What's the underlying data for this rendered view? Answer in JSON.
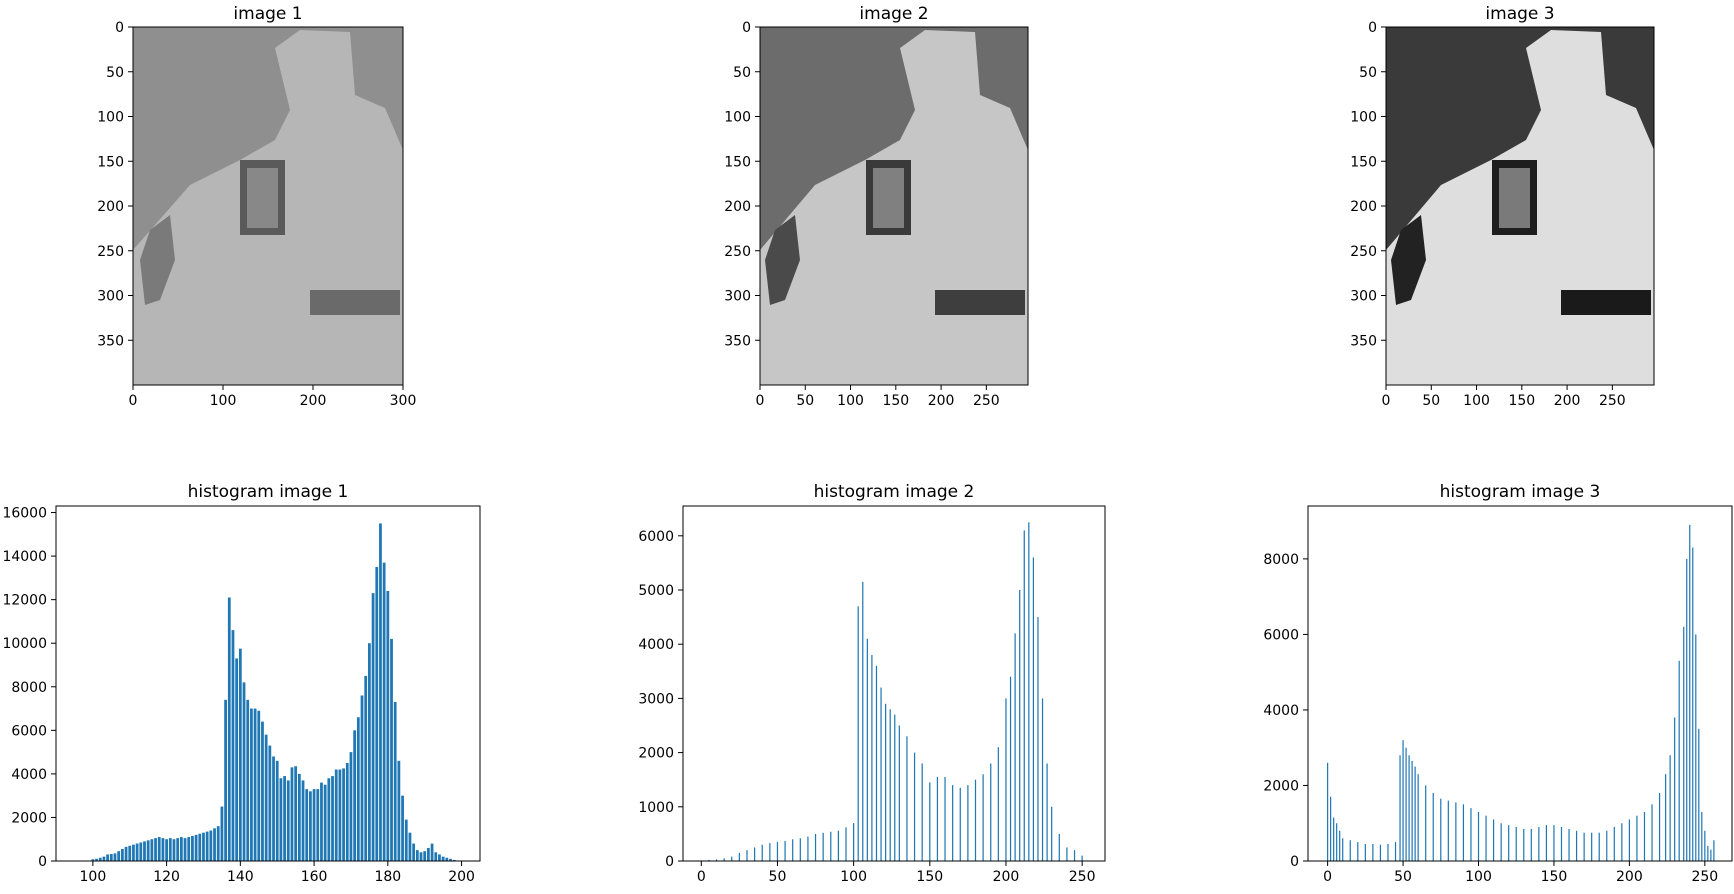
{
  "figure": {
    "images": [
      {
        "title": "image 1",
        "xticks": [
          0,
          100,
          200,
          300
        ],
        "yticks": [
          0,
          50,
          100,
          150,
          200,
          250,
          300,
          350
        ],
        "width": 300,
        "height": 400,
        "contrast": "low"
      },
      {
        "title": "image 2",
        "xticks": [
          0,
          50,
          100,
          150,
          200,
          250
        ],
        "yticks": [
          0,
          50,
          100,
          150,
          200,
          250,
          300,
          350
        ],
        "width": 296,
        "height": 400,
        "contrast": "medium"
      },
      {
        "title": "image 3",
        "xticks": [
          0,
          50,
          100,
          150,
          200,
          250
        ],
        "yticks": [
          0,
          50,
          100,
          150,
          200,
          250,
          300,
          350
        ],
        "width": 296,
        "height": 400,
        "contrast": "high"
      }
    ],
    "bar_color": "#1f77b4"
  },
  "chart_data": [
    {
      "type": "bar",
      "title": "histogram image 1",
      "xlabel": "",
      "ylabel": "",
      "xlim": [
        90,
        205
      ],
      "ylim": [
        0,
        16300
      ],
      "xticks": [
        100,
        120,
        140,
        160,
        180,
        200
      ],
      "yticks": [
        0,
        2000,
        4000,
        6000,
        8000,
        10000,
        12000,
        14000,
        16000
      ],
      "x": [
        100,
        101,
        102,
        103,
        104,
        105,
        106,
        107,
        108,
        109,
        110,
        111,
        112,
        113,
        114,
        115,
        116,
        117,
        118,
        119,
        120,
        121,
        122,
        123,
        124,
        125,
        126,
        127,
        128,
        129,
        130,
        131,
        132,
        133,
        134,
        135,
        136,
        137,
        138,
        139,
        140,
        141,
        142,
        143,
        144,
        145,
        146,
        147,
        148,
        149,
        150,
        151,
        152,
        153,
        154,
        155,
        156,
        157,
        158,
        159,
        160,
        161,
        162,
        163,
        164,
        165,
        166,
        167,
        168,
        169,
        170,
        171,
        172,
        173,
        174,
        175,
        176,
        177,
        178,
        179,
        180,
        181,
        182,
        183,
        184,
        185,
        186,
        187,
        188,
        189,
        190,
        191,
        192,
        193,
        194,
        195,
        196,
        197,
        198
      ],
      "values": [
        80,
        100,
        150,
        200,
        300,
        320,
        350,
        450,
        550,
        650,
        700,
        750,
        800,
        850,
        900,
        950,
        1000,
        1050,
        1100,
        1050,
        1000,
        1050,
        1000,
        1050,
        1100,
        1050,
        1100,
        1150,
        1200,
        1250,
        1300,
        1350,
        1400,
        1500,
        1600,
        2500,
        7400,
        12100,
        10600,
        9300,
        9750,
        8200,
        7400,
        7000,
        7000,
        6900,
        6400,
        5800,
        5300,
        4800,
        4600,
        3800,
        3900,
        3700,
        4300,
        4350,
        4000,
        3700,
        3300,
        3200,
        3300,
        3300,
        3600,
        3500,
        3800,
        3900,
        4200,
        4200,
        4250,
        4500,
        5000,
        6000,
        6600,
        7600,
        8500,
        10000,
        12300,
        13500,
        15500,
        13700,
        12400,
        10200,
        7300,
        4600,
        3000,
        1900,
        1300,
        800,
        500,
        400,
        450,
        600,
        800,
        400,
        300,
        200,
        150,
        100,
        50
      ]
    },
    {
      "type": "bar",
      "title": "histogram image 2",
      "xlabel": "",
      "ylabel": "",
      "xlim": [
        -12,
        265
      ],
      "ylim": [
        0,
        6550
      ],
      "xticks": [
        0,
        50,
        100,
        150,
        200,
        250
      ],
      "yticks": [
        0,
        1000,
        2000,
        3000,
        4000,
        5000,
        6000
      ],
      "x": [
        0,
        5,
        10,
        15,
        20,
        25,
        30,
        35,
        40,
        45,
        50,
        55,
        60,
        65,
        70,
        75,
        80,
        85,
        90,
        95,
        100,
        103,
        106,
        109,
        112,
        115,
        118,
        121,
        124,
        127,
        130,
        135,
        140,
        145,
        150,
        155,
        160,
        165,
        170,
        175,
        180,
        185,
        190,
        195,
        200,
        203,
        206,
        209,
        212,
        215,
        218,
        221,
        224,
        227,
        230,
        235,
        240,
        245,
        250
      ],
      "values": [
        10,
        20,
        30,
        50,
        80,
        150,
        200,
        250,
        300,
        330,
        350,
        370,
        400,
        420,
        450,
        500,
        520,
        540,
        560,
        620,
        700,
        4700,
        5150,
        4100,
        3800,
        3600,
        3200,
        2900,
        2800,
        2700,
        2500,
        2300,
        2000,
        1800,
        1450,
        1550,
        1550,
        1400,
        1350,
        1400,
        1500,
        1600,
        1800,
        2100,
        3000,
        3400,
        4200,
        5000,
        6100,
        6250,
        5600,
        4500,
        3000,
        1800,
        1000,
        500,
        250,
        200,
        100
      ]
    },
    {
      "type": "bar",
      "title": "histogram image 3",
      "xlabel": "",
      "ylabel": "",
      "xlim": [
        -13,
        268
      ],
      "ylim": [
        0,
        9400
      ],
      "xticks": [
        0,
        50,
        100,
        150,
        200,
        250
      ],
      "yticks": [
        0,
        2000,
        4000,
        6000,
        8000
      ],
      "x": [
        0,
        2,
        4,
        6,
        8,
        10,
        15,
        20,
        25,
        30,
        35,
        40,
        45,
        48,
        50,
        52,
        54,
        56,
        58,
        60,
        65,
        70,
        75,
        80,
        85,
        90,
        95,
        100,
        105,
        110,
        115,
        120,
        125,
        130,
        135,
        140,
        145,
        150,
        155,
        160,
        165,
        170,
        175,
        180,
        185,
        190,
        195,
        200,
        205,
        210,
        215,
        220,
        224,
        227,
        230,
        233,
        236,
        238,
        240,
        242,
        244,
        246,
        248,
        250,
        252,
        254,
        256
      ],
      "values": [
        2600,
        1700,
        1150,
        1000,
        800,
        600,
        550,
        500,
        450,
        450,
        430,
        450,
        500,
        2800,
        3200,
        3000,
        2800,
        2650,
        2500,
        2300,
        2000,
        1800,
        1650,
        1600,
        1550,
        1500,
        1400,
        1300,
        1200,
        1100,
        1000,
        950,
        900,
        850,
        850,
        900,
        950,
        950,
        900,
        850,
        800,
        750,
        750,
        750,
        800,
        900,
        1000,
        1100,
        1200,
        1300,
        1500,
        1800,
        2300,
        2800,
        3800,
        5300,
        6200,
        8000,
        8900,
        8300,
        6000,
        3500,
        1300,
        800,
        400,
        300,
        550
      ]
    }
  ]
}
